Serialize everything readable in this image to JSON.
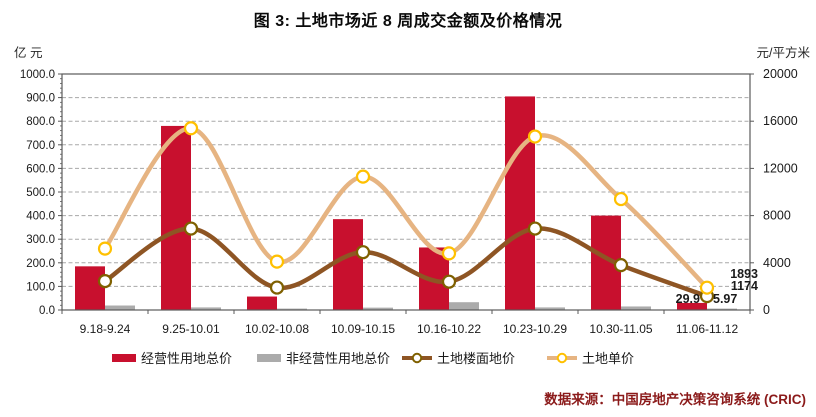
{
  "title": "图 3: 土地市场近 8 周成交金额及价格情况",
  "source": "数据来源：中国房地产决策咨询系统 (CRIC)",
  "chart_data": {
    "type": "bar",
    "subtype": "combo-bar-line-dual-axis",
    "title": "图 3: 土地市场近 8 周成交金额及价格情况",
    "categories": [
      "9.18-9.24",
      "9.25-10.01",
      "10.02-10.08",
      "10.09-10.15",
      "10.16-10.22",
      "10.23-10.29",
      "10.30-11.05",
      "11.06-11.12"
    ],
    "left_axis": {
      "label": "亿 元",
      "min": 0,
      "max": 1000,
      "step": 100,
      "decimals": 1
    },
    "right_axis": {
      "label": "元/平方米",
      "min": 0,
      "max": 20000,
      "step": 4000,
      "decimals": 0
    },
    "grid": "dashed-horizontal",
    "legend_position": "bottom",
    "series": [
      {
        "name": "经营性用地总价",
        "kind": "bar",
        "axis": "left",
        "color": "#c8102e",
        "values": [
          185,
          780,
          57,
          385,
          265,
          905,
          400,
          29.9
        ]
      },
      {
        "name": "非经营性用地总价",
        "kind": "bar",
        "axis": "left",
        "color": "#ababab",
        "values": [
          19,
          11,
          6,
          10,
          33,
          11,
          15,
          5.97
        ]
      },
      {
        "name": "土地楼面地价",
        "kind": "line",
        "axis": "right",
        "color": "#8e5524",
        "marker": "#7f6000",
        "values": [
          2450,
          6900,
          1900,
          4900,
          2400,
          6900,
          3800,
          1174
        ]
      },
      {
        "name": "土地单价",
        "kind": "line",
        "axis": "right",
        "color": "#e6b482",
        "marker": "#ffc000",
        "values": [
          5200,
          15400,
          4100,
          11300,
          4800,
          14700,
          9400,
          1893
        ]
      }
    ],
    "annotations": [
      {
        "text": "1893"
      },
      {
        "text": "1174"
      },
      {
        "text": "29.9"
      },
      {
        "text": "5.97"
      }
    ],
    "colors": {
      "grid": "#a8a8a8",
      "plot_border": "#595959",
      "axis_text": "#1a1a1a",
      "annotation_text": "#1a1a1a",
      "source_text": "#8b1a1a"
    }
  }
}
